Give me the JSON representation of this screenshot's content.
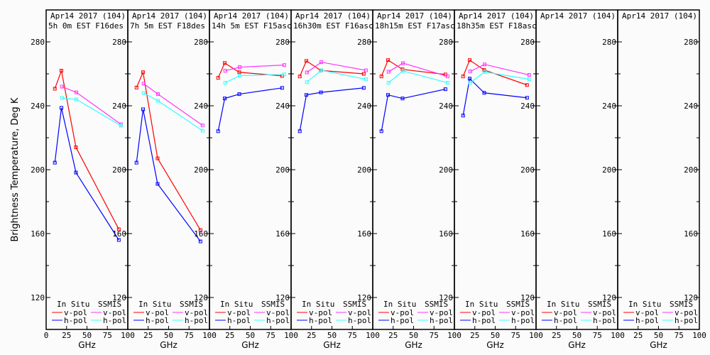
{
  "chart_data": [
    {
      "type": "line",
      "title": [
        "Apr14 2017 (104)",
        "5h 0m  EST F16des"
      ],
      "series": [
        {
          "name": "In Situ v-pol",
          "x": [
            10.65,
            18.7,
            36.5,
            89
          ],
          "values": [
            250.7,
            262,
            214,
            162.7
          ]
        },
        {
          "name": "In Situ h-pol",
          "x": [
            10.65,
            18.7,
            36.5,
            89
          ],
          "values": [
            204.4,
            238.7,
            198.2,
            156
          ]
        },
        {
          "name": "SSMIS v-pol",
          "x": [
            19.35,
            37,
            91.65
          ],
          "values": [
            252,
            248.4,
            228.4
          ]
        },
        {
          "name": "SSMIS h-pol",
          "x": [
            19.35,
            37,
            91.65
          ],
          "values": [
            244.9,
            244,
            227.5
          ]
        }
      ]
    },
    {
      "type": "line",
      "title": [
        "Apr14 2017 (104)",
        "7h 5m  EST F18des"
      ],
      "series": [
        {
          "name": "In Situ v-pol",
          "x": [
            10.65,
            18.7,
            36.5,
            89
          ],
          "values": [
            251.4,
            261,
            207.1,
            162.2
          ]
        },
        {
          "name": "In Situ h-pol",
          "x": [
            10.65,
            18.7,
            36.5,
            89
          ],
          "values": [
            204.4,
            237.8,
            191.1,
            155.1
          ]
        },
        {
          "name": "SSMIS v-pol",
          "x": [
            19.35,
            37,
            91.65
          ],
          "values": [
            253.9,
            247.3,
            227.7
          ]
        },
        {
          "name": "SSMIS h-pol",
          "x": [
            19.35,
            37,
            91.65
          ],
          "values": [
            248,
            243.1,
            224.4
          ]
        }
      ]
    },
    {
      "type": "line",
      "title": [
        "Apr14 2017 (104)",
        "14h 5m  EST F15asc"
      ],
      "series": [
        {
          "name": "In Situ v-pol",
          "x": [
            10.65,
            18.7,
            36.5,
            89
          ],
          "values": [
            257.5,
            266.8,
            261,
            258.7
          ]
        },
        {
          "name": "In Situ h-pol",
          "x": [
            10.65,
            18.7,
            36.5,
            89
          ],
          "values": [
            224.1,
            244.6,
            247.3,
            251.2
          ]
        },
        {
          "name": "SSMIS v-pol",
          "x": [
            19.35,
            37,
            91.65
          ],
          "values": [
            261.9,
            264.2,
            265.5
          ]
        },
        {
          "name": "SSMIS h-pol",
          "x": [
            19.35,
            37,
            91.65
          ],
          "values": [
            254.4,
            258.8,
            259.7
          ]
        }
      ]
    },
    {
      "type": "line",
      "title": [
        "Apr14 2017 (104)",
        "16h30m  EST F16asc"
      ],
      "series": [
        {
          "name": "In Situ v-pol",
          "x": [
            10.65,
            18.7,
            36.5,
            89
          ],
          "values": [
            258.4,
            268.1,
            262.1,
            260
          ]
        },
        {
          "name": "In Situ h-pol",
          "x": [
            10.65,
            18.7,
            36.5,
            89
          ],
          "values": [
            224.1,
            246.8,
            248.4,
            251.2
          ]
        },
        {
          "name": "SSMIS v-pol",
          "x": [
            19.35,
            37,
            91.65
          ],
          "values": [
            260.9,
            267.3,
            262.2
          ]
        },
        {
          "name": "SSMIS h-pol",
          "x": [
            19.35,
            37,
            91.65
          ],
          "values": [
            254.8,
            262.2,
            256.6
          ]
        }
      ]
    },
    {
      "type": "line",
      "title": [
        "Apr14 2017 (104)",
        "18h15m  EST F17asc"
      ],
      "series": [
        {
          "name": "In Situ v-pol",
          "x": [
            10.65,
            18.7,
            36.5,
            89
          ],
          "values": [
            258.4,
            268.6,
            262.8,
            259.6
          ]
        },
        {
          "name": "In Situ h-pol",
          "x": [
            10.65,
            18.7,
            36.5,
            89
          ],
          "values": [
            224.1,
            246.8,
            244.6,
            250.4
          ]
        },
        {
          "name": "SSMIS v-pol",
          "x": [
            19.35,
            37,
            91.65
          ],
          "values": [
            261.3,
            266.7,
            258.4
          ]
        },
        {
          "name": "SSMIS h-pol",
          "x": [
            19.35,
            37,
            91.65
          ],
          "values": [
            254.4,
            261.8,
            254.4
          ]
        }
      ]
    },
    {
      "type": "line",
      "title": [
        "Apr14 2017 (104)",
        "18h35m  EST F18asc"
      ],
      "series": [
        {
          "name": "In Situ v-pol",
          "x": [
            10.65,
            18.7,
            36.5,
            89
          ],
          "values": [
            258.4,
            268.6,
            262.4,
            253
          ]
        },
        {
          "name": "In Situ h-pol",
          "x": [
            10.65,
            18.7,
            36.5,
            89
          ],
          "values": [
            233.9,
            257,
            248.1,
            245
          ]
        },
        {
          "name": "SSMIS v-pol",
          "x": [
            19.35,
            37,
            91.65
          ],
          "values": [
            261.5,
            265.9,
            259.3
          ]
        },
        {
          "name": "SSMIS h-pol",
          "x": [
            19.35,
            37,
            91.65
          ],
          "values": [
            254.4,
            261.2,
            256.6
          ]
        }
      ]
    },
    {
      "type": "line",
      "title": [
        "Apr14 2017 (104)",
        ""
      ],
      "series": []
    },
    {
      "type": "line",
      "title": [
        "Apr14 2017 (104)",
        ""
      ],
      "series": []
    }
  ],
  "axes": {
    "xlabel": "GHz",
    "ylabel": "Brightness Temperature, Deg K",
    "xlim": [
      0,
      100
    ],
    "ylim": [
      100,
      300
    ],
    "xticks": [
      0,
      25,
      50,
      75,
      100
    ],
    "yticks": [
      120,
      160,
      200,
      240,
      280
    ],
    "grid": false
  },
  "legend": {
    "placement": "bottom",
    "group1": "In Situ",
    "group2": "SSMIS",
    "v": "v-pol",
    "h": "h-pol"
  },
  "colors": {
    "In Situ v-pol": "#ff0000",
    "In Situ h-pol": "#0000ff",
    "SSMIS v-pol": "#ff33ff",
    "SSMIS h-pol": "#33ffff"
  }
}
